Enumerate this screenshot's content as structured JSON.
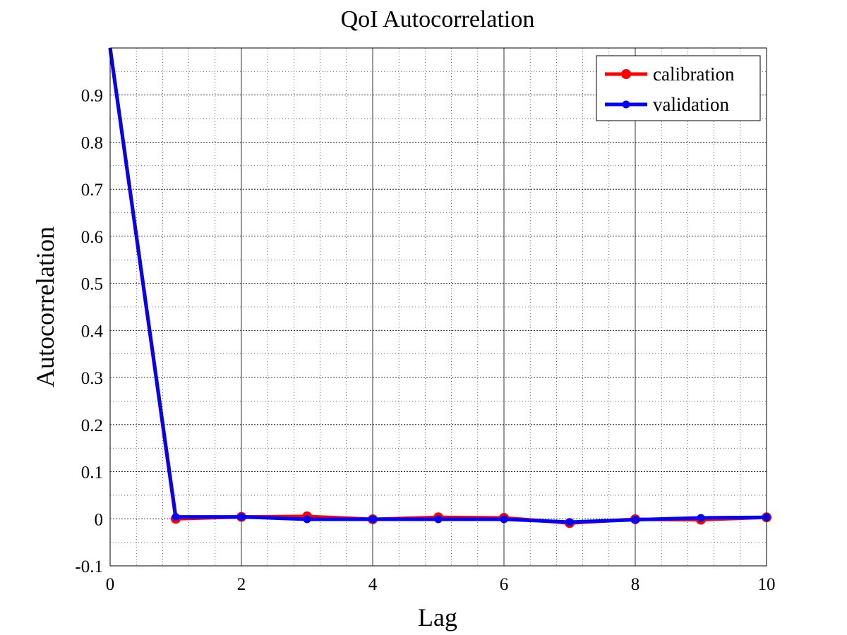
{
  "chart_data": {
    "type": "line",
    "title": "QoI Autocorrelation",
    "xlabel": "Lag",
    "ylabel": "Autocorrelation",
    "xlim": [
      0,
      10
    ],
    "ylim": [
      -0.1,
      1.0
    ],
    "xticks": [
      0,
      2,
      4,
      6,
      8,
      10
    ],
    "xtick_labels": [
      "0",
      "2",
      "4",
      "6",
      "8",
      "10"
    ],
    "yticks": [
      -0.1,
      0,
      0.1,
      0.2,
      0.3,
      0.4,
      0.5,
      0.6,
      0.7,
      0.8,
      0.9
    ],
    "ytick_labels": [
      "-0.1",
      "0",
      "0.1",
      "0.2",
      "0.3",
      "0.4",
      "0.5",
      "0.6",
      "0.7",
      "0.8",
      "0.9"
    ],
    "grid": true,
    "minor_grid": true,
    "legend_position": "top-right",
    "x": [
      0,
      1,
      2,
      3,
      4,
      5,
      6,
      7,
      8,
      9,
      10
    ],
    "series": [
      {
        "name": "calibration",
        "color": "#ff0000",
        "values": [
          1.0,
          0.0,
          0.004,
          0.005,
          -0.001,
          0.003,
          0.002,
          -0.009,
          -0.001,
          -0.002,
          0.003
        ]
      },
      {
        "name": "validation",
        "color": "#0000ff",
        "values": [
          1.0,
          0.004,
          0.004,
          -0.001,
          -0.001,
          -0.001,
          -0.001,
          -0.007,
          -0.002,
          0.002,
          0.003
        ]
      }
    ]
  }
}
